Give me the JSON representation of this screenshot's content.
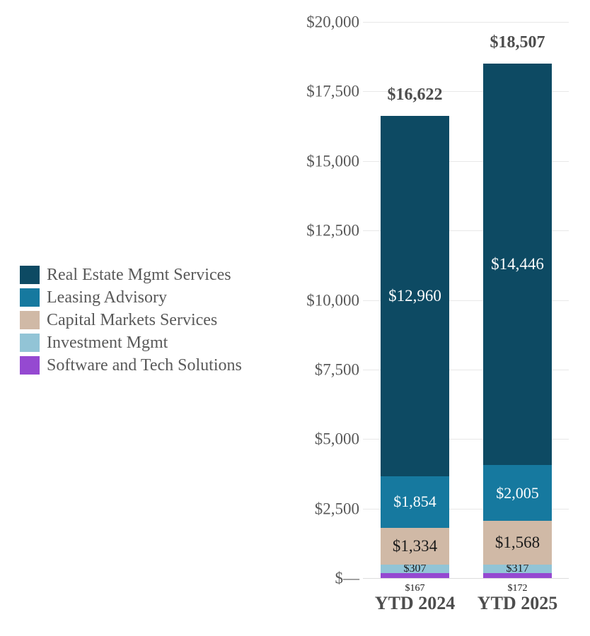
{
  "chart_data": {
    "type": "bar",
    "stacked": true,
    "title": "",
    "categories": [
      "YTD 2024",
      "YTD 2025"
    ],
    "series": [
      {
        "name": "Software and Tech Solutions",
        "color": "#9549d1",
        "values": [
          167,
          172
        ],
        "labels": [
          "$167",
          "$172"
        ],
        "label_placement": "below-axis",
        "label_color": "#1a1a1a"
      },
      {
        "name": "Investment Mgmt",
        "color": "#92c4d6",
        "values": [
          307,
          317
        ],
        "labels": [
          "$307",
          "$317"
        ],
        "label_placement": "inside",
        "label_color": "#1a1a1a"
      },
      {
        "name": "Capital Markets Services",
        "color": "#d0b9a6",
        "values": [
          1334,
          1568
        ],
        "labels": [
          "$1,334",
          "$1,568"
        ],
        "label_placement": "inside",
        "label_color": "#1a1a1a"
      },
      {
        "name": "Leasing Advisory",
        "color": "#16799f",
        "values": [
          1854,
          2005
        ],
        "labels": [
          "$1,854",
          "$2,005"
        ],
        "label_placement": "inside",
        "label_color": "#ffffff"
      },
      {
        "name": "Real Estate Mgmt Services",
        "color": "#0d4a63",
        "values": [
          12960,
          14446
        ],
        "labels": [
          "$12,960",
          "$14,446"
        ],
        "label_placement": "inside",
        "label_color": "#ffffff"
      }
    ],
    "totals": {
      "values": [
        16622,
        18507
      ],
      "labels": [
        "$16,622",
        "$18,507"
      ]
    },
    "y_axis": {
      "min": 0,
      "max": 20000,
      "step": 2500,
      "tick_labels": [
        "$—",
        "$2,500",
        "$5,000",
        "$7,500",
        "$10,000",
        "$12,500",
        "$15,000",
        "$17,500",
        "$20,000"
      ]
    },
    "xlabel": "",
    "ylabel": "",
    "grid": true,
    "legend": {
      "position": "middle-left",
      "items": [
        {
          "label": "Real Estate Mgmt Services",
          "color": "#0d4a63"
        },
        {
          "label": "Leasing Advisory",
          "color": "#16799f"
        },
        {
          "label": "Capital Markets Services",
          "color": "#d0b9a6"
        },
        {
          "label": "Investment Mgmt",
          "color": "#92c4d6"
        },
        {
          "label": "Software and Tech Solutions",
          "color": "#9549d1"
        }
      ]
    }
  },
  "colors": {
    "axis_text": "#595959",
    "strong_text": "#4d4d4d",
    "gridline": "#e8e8e8",
    "axis_line": "#dcdcdc",
    "background": "#ffffff"
  }
}
